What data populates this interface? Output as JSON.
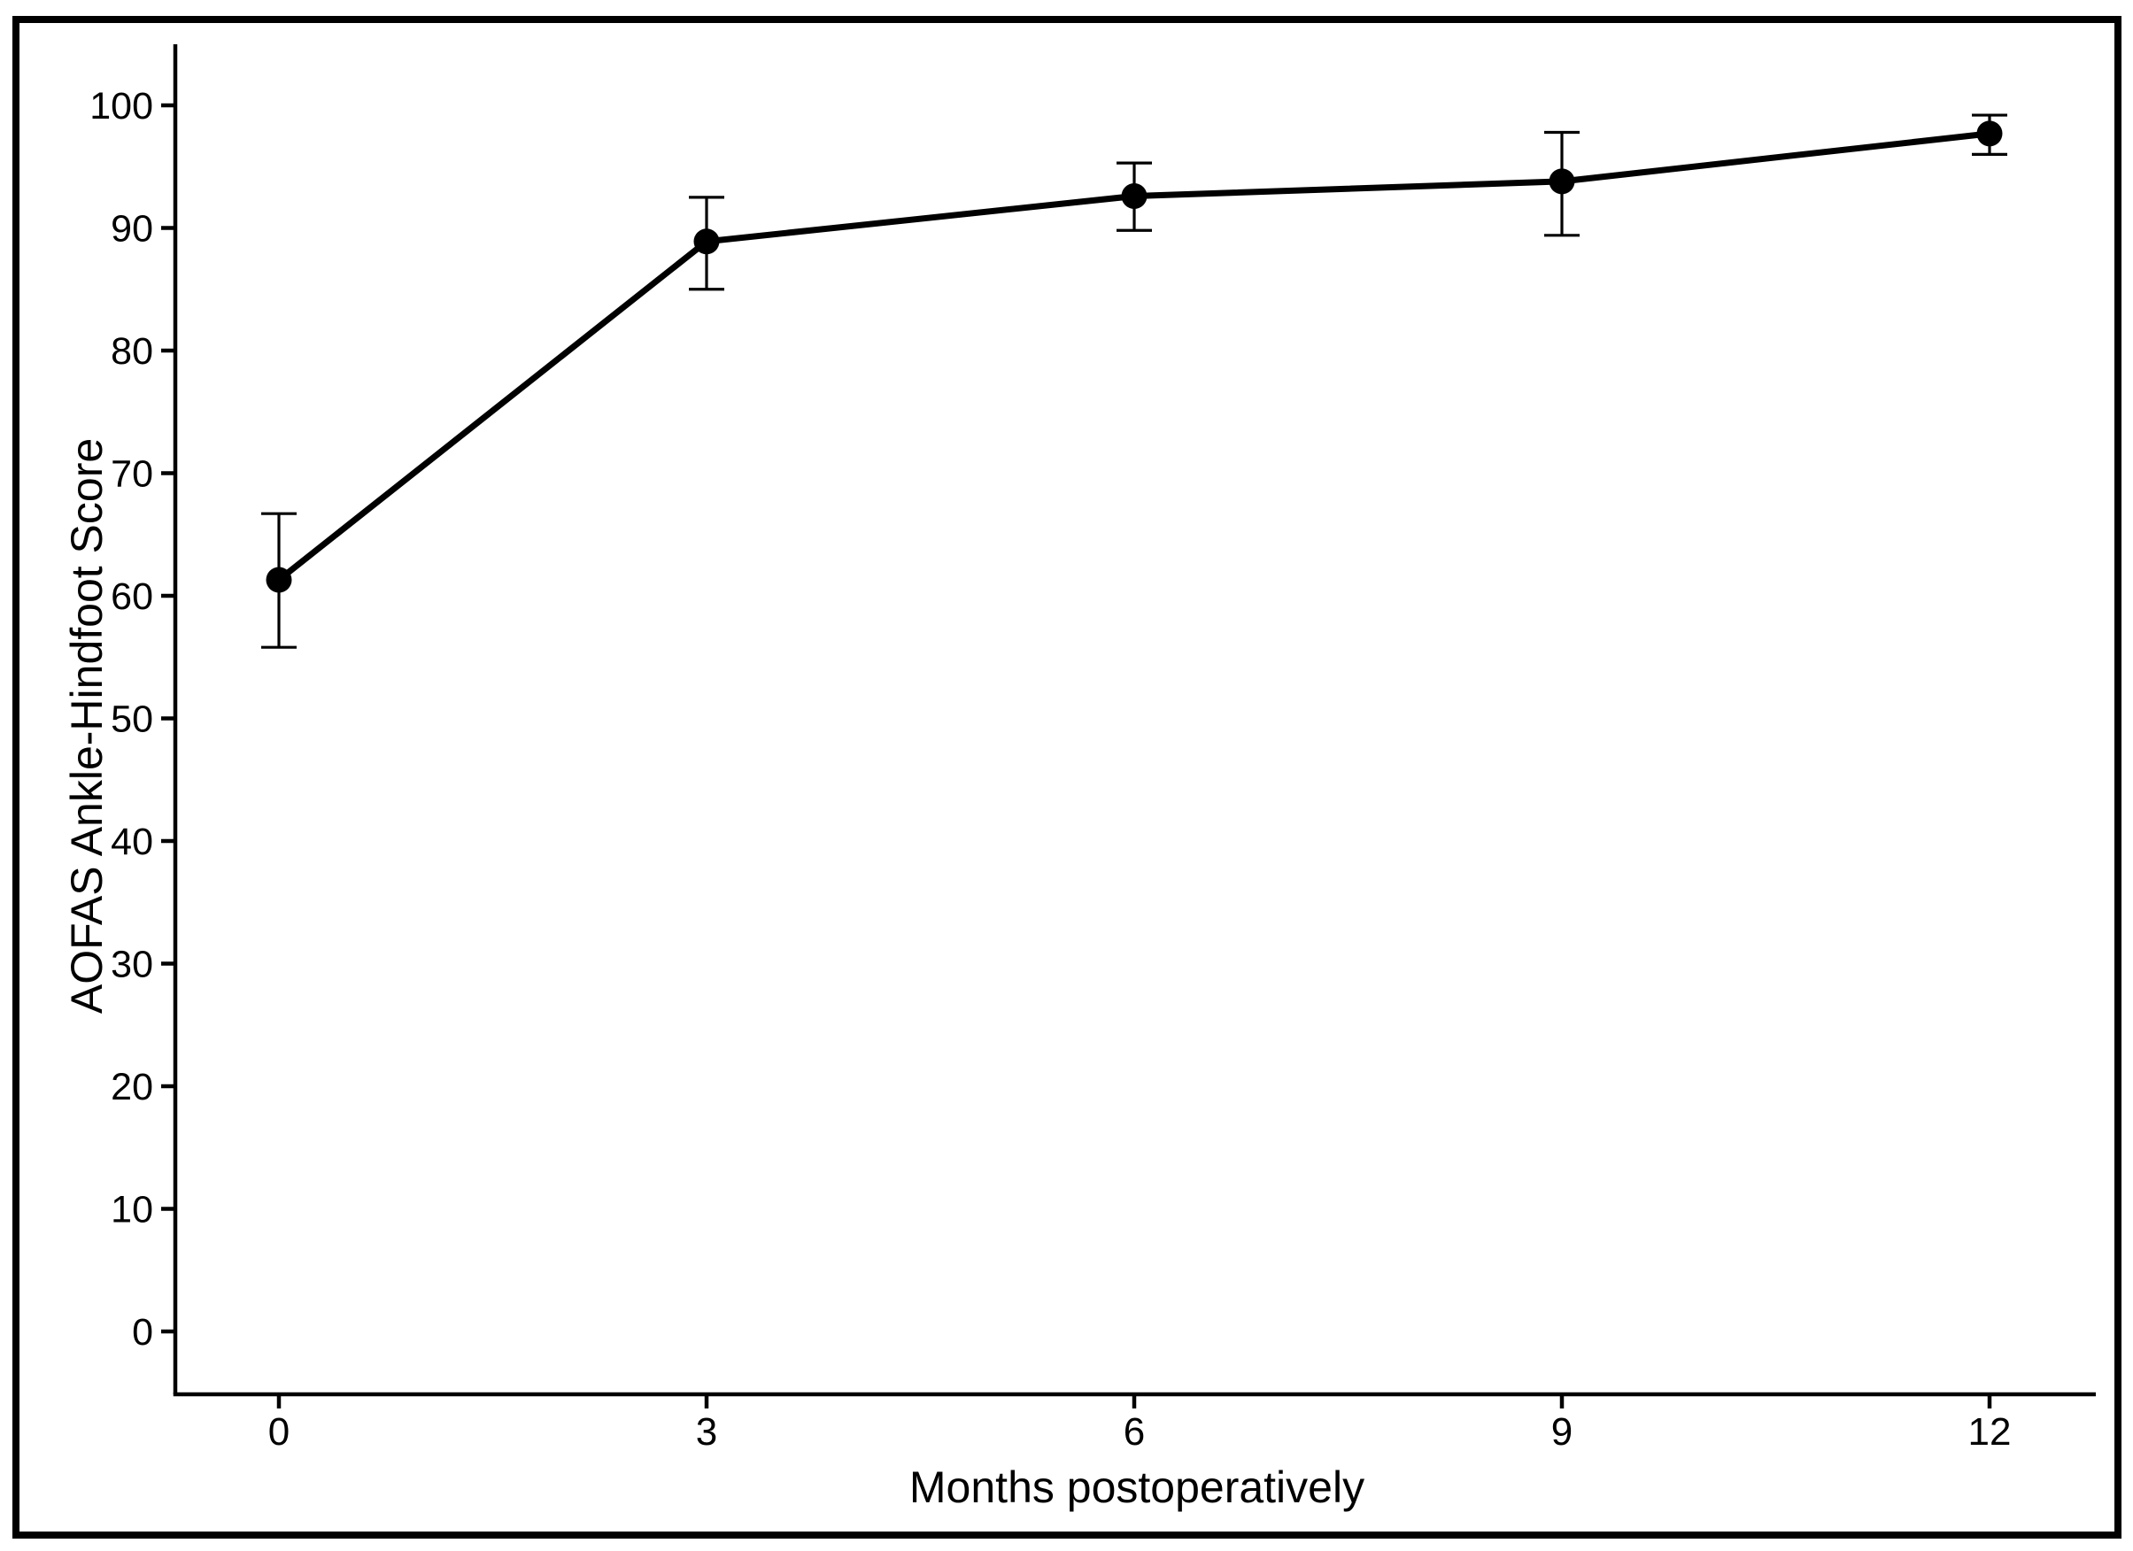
{
  "figure": {
    "background_color": "#ffffff",
    "frame_color": "#000000",
    "plot_color": "#000000"
  },
  "chart_data": {
    "type": "line",
    "title": "",
    "xlabel": "Months postoperatively",
    "ylabel": "AOFAS Ankle-Hindfoot Score",
    "x": [
      0,
      3,
      6,
      9,
      12
    ],
    "xtick_labels": [
      "0",
      "3",
      "6",
      "9",
      "12"
    ],
    "yticks": [
      0,
      10,
      20,
      30,
      40,
      50,
      60,
      70,
      80,
      90,
      100
    ],
    "ylim": [
      -5,
      105
    ],
    "xlim": [
      -0.73,
      12.75
    ],
    "grid": false,
    "legend": false,
    "series": [
      {
        "name": "Mean AOFAS Ankle-Hindfoot Score with error bars",
        "marker": "filled-circle",
        "color": "#000000",
        "values": [
          61.3,
          88.9,
          92.6,
          93.8,
          97.7
        ],
        "error_upper": [
          66.7,
          92.5,
          95.3,
          97.8,
          99.2
        ],
        "error_lower": [
          55.8,
          85.0,
          89.8,
          89.4,
          96.0
        ]
      }
    ]
  }
}
